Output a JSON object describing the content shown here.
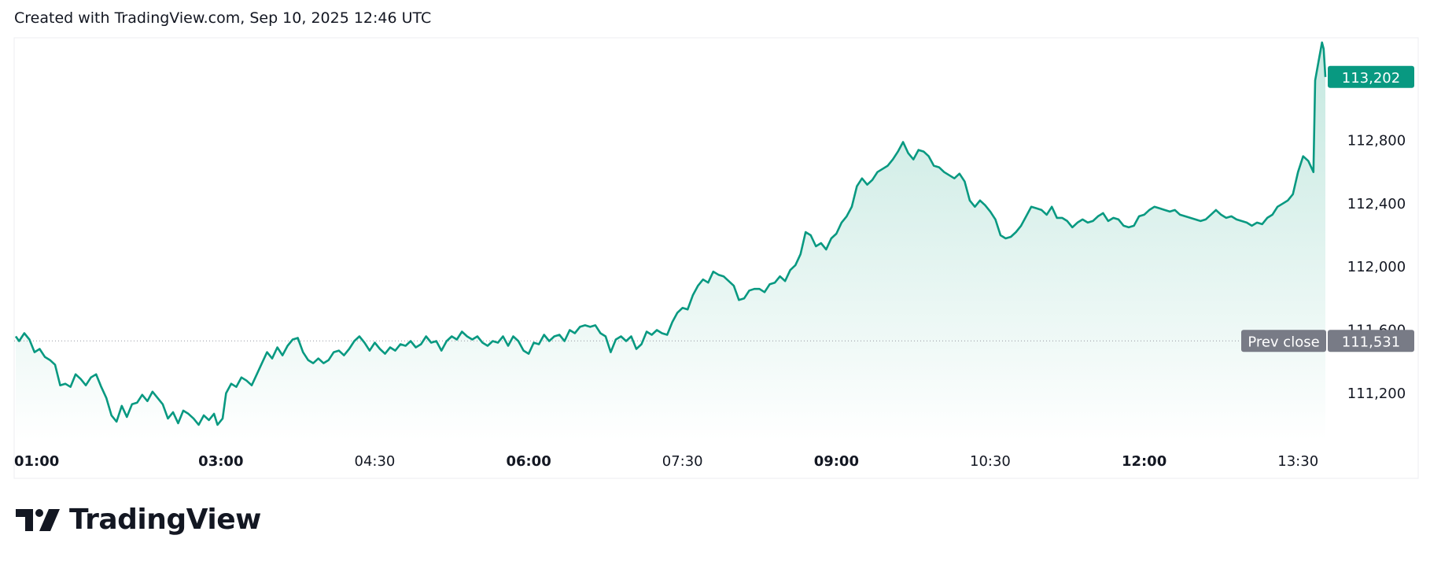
{
  "header": {
    "text": "Created with TradingView.com, Sep 10, 2025 12:46 UTC"
  },
  "logo": {
    "text": "TradingView"
  },
  "colors": {
    "line": "#089981",
    "fill_top": "#bfe6dd",
    "fill_bottom": "#ffffff",
    "prev_close_badge": "#787b86",
    "last_price_badge": "#089981",
    "axis_text": "#131722"
  },
  "chart_data": {
    "type": "area",
    "title": "",
    "xlabel": "",
    "ylabel": "",
    "x_ticks": [
      {
        "label": "01:00",
        "t": 0,
        "bold": true
      },
      {
        "label": "03:00",
        "t": 120,
        "bold": true
      },
      {
        "label": "04:30",
        "t": 210,
        "bold": false
      },
      {
        "label": "06:00",
        "t": 300,
        "bold": true
      },
      {
        "label": "07:30",
        "t": 390,
        "bold": false
      },
      {
        "label": "09:00",
        "t": 480,
        "bold": true
      },
      {
        "label": "10:30",
        "t": 570,
        "bold": false
      },
      {
        "label": "12:00",
        "t": 660,
        "bold": true
      },
      {
        "label": "13:30",
        "t": 750,
        "bold": false
      }
    ],
    "y_ticks": [
      111200,
      111600,
      112000,
      112400,
      112800
    ],
    "y_range": [
      110900,
      113450
    ],
    "x_range_minutes": [
      0,
      766
    ],
    "prev_close": {
      "label": "Prev close",
      "value": 111531,
      "value_label": "111,531"
    },
    "last_price": {
      "value": 113202,
      "value_label": "113,202"
    },
    "series": [
      {
        "values": [
          [
            0,
            111560
          ],
          [
            2,
            111530
          ],
          [
            5,
            111580
          ],
          [
            8,
            111540
          ],
          [
            11,
            111460
          ],
          [
            14,
            111480
          ],
          [
            17,
            111430
          ],
          [
            20,
            111410
          ],
          [
            23,
            111380
          ],
          [
            26,
            111250
          ],
          [
            29,
            111260
          ],
          [
            32,
            111240
          ],
          [
            35,
            111320
          ],
          [
            38,
            111290
          ],
          [
            41,
            111250
          ],
          [
            44,
            111300
          ],
          [
            47,
            111320
          ],
          [
            50,
            111240
          ],
          [
            53,
            111170
          ],
          [
            56,
            111060
          ],
          [
            59,
            111020
          ],
          [
            62,
            111120
          ],
          [
            65,
            111050
          ],
          [
            68,
            111130
          ],
          [
            71,
            111140
          ],
          [
            74,
            111190
          ],
          [
            77,
            111150
          ],
          [
            80,
            111210
          ],
          [
            83,
            111170
          ],
          [
            86,
            111130
          ],
          [
            89,
            111040
          ],
          [
            92,
            111080
          ],
          [
            95,
            111010
          ],
          [
            98,
            111090
          ],
          [
            101,
            111070
          ],
          [
            104,
            111040
          ],
          [
            107,
            111000
          ],
          [
            110,
            111060
          ],
          [
            113,
            111030
          ],
          [
            116,
            111070
          ],
          [
            118,
            111000
          ],
          [
            121,
            111040
          ],
          [
            123,
            111200
          ],
          [
            126,
            111260
          ],
          [
            129,
            111240
          ],
          [
            132,
            111300
          ],
          [
            135,
            111280
          ],
          [
            138,
            111250
          ],
          [
            141,
            111320
          ],
          [
            144,
            111390
          ],
          [
            147,
            111460
          ],
          [
            150,
            111420
          ],
          [
            153,
            111490
          ],
          [
            156,
            111440
          ],
          [
            159,
            111500
          ],
          [
            162,
            111540
          ],
          [
            165,
            111550
          ],
          [
            168,
            111460
          ],
          [
            171,
            111410
          ],
          [
            174,
            111390
          ],
          [
            177,
            111420
          ],
          [
            180,
            111390
          ],
          [
            183,
            111410
          ],
          [
            186,
            111460
          ],
          [
            189,
            111470
          ],
          [
            192,
            111440
          ],
          [
            195,
            111480
          ],
          [
            198,
            111530
          ],
          [
            201,
            111560
          ],
          [
            204,
            111520
          ],
          [
            207,
            111470
          ],
          [
            210,
            111520
          ],
          [
            213,
            111480
          ],
          [
            216,
            111450
          ],
          [
            219,
            111490
          ],
          [
            222,
            111470
          ],
          [
            225,
            111510
          ],
          [
            228,
            111500
          ],
          [
            231,
            111530
          ],
          [
            234,
            111490
          ],
          [
            237,
            111510
          ],
          [
            240,
            111560
          ],
          [
            243,
            111520
          ],
          [
            246,
            111530
          ],
          [
            249,
            111470
          ],
          [
            252,
            111530
          ],
          [
            255,
            111560
          ],
          [
            258,
            111540
          ],
          [
            261,
            111590
          ],
          [
            264,
            111560
          ],
          [
            267,
            111540
          ],
          [
            270,
            111560
          ],
          [
            273,
            111520
          ],
          [
            276,
            111500
          ],
          [
            279,
            111530
          ],
          [
            282,
            111520
          ],
          [
            285,
            111560
          ],
          [
            288,
            111500
          ],
          [
            291,
            111560
          ],
          [
            294,
            111530
          ],
          [
            297,
            111470
          ],
          [
            300,
            111450
          ],
          [
            303,
            111520
          ],
          [
            306,
            111510
          ],
          [
            309,
            111570
          ],
          [
            312,
            111530
          ],
          [
            315,
            111560
          ],
          [
            318,
            111570
          ],
          [
            321,
            111530
          ],
          [
            324,
            111600
          ],
          [
            327,
            111580
          ],
          [
            330,
            111620
          ],
          [
            333,
            111630
          ],
          [
            336,
            111620
          ],
          [
            339,
            111630
          ],
          [
            342,
            111580
          ],
          [
            345,
            111560
          ],
          [
            348,
            111460
          ],
          [
            351,
            111540
          ],
          [
            354,
            111560
          ],
          [
            357,
            111530
          ],
          [
            360,
            111560
          ],
          [
            363,
            111480
          ],
          [
            366,
            111510
          ],
          [
            369,
            111590
          ],
          [
            372,
            111570
          ],
          [
            375,
            111600
          ],
          [
            378,
            111580
          ],
          [
            381,
            111570
          ],
          [
            384,
            111650
          ],
          [
            387,
            111710
          ],
          [
            390,
            111740
          ],
          [
            393,
            111730
          ],
          [
            396,
            111820
          ],
          [
            399,
            111880
          ],
          [
            402,
            111920
          ],
          [
            405,
            111900
          ],
          [
            408,
            111970
          ],
          [
            411,
            111950
          ],
          [
            414,
            111940
          ],
          [
            417,
            111910
          ],
          [
            420,
            111880
          ],
          [
            423,
            111790
          ],
          [
            426,
            111800
          ],
          [
            429,
            111850
          ],
          [
            432,
            111860
          ],
          [
            435,
            111860
          ],
          [
            438,
            111840
          ],
          [
            441,
            111890
          ],
          [
            444,
            111900
          ],
          [
            447,
            111940
          ],
          [
            450,
            111910
          ],
          [
            453,
            111980
          ],
          [
            456,
            112010
          ],
          [
            459,
            112080
          ],
          [
            462,
            112220
          ],
          [
            465,
            112200
          ],
          [
            468,
            112130
          ],
          [
            471,
            112150
          ],
          [
            474,
            112110
          ],
          [
            477,
            112180
          ],
          [
            480,
            112210
          ],
          [
            483,
            112280
          ],
          [
            486,
            112320
          ],
          [
            489,
            112380
          ],
          [
            492,
            112510
          ],
          [
            495,
            112560
          ],
          [
            498,
            112520
          ],
          [
            501,
            112550
          ],
          [
            504,
            112600
          ],
          [
            507,
            112620
          ],
          [
            510,
            112640
          ],
          [
            513,
            112680
          ],
          [
            516,
            112730
          ],
          [
            519,
            112790
          ],
          [
            522,
            112720
          ],
          [
            525,
            112680
          ],
          [
            528,
            112740
          ],
          [
            531,
            112730
          ],
          [
            534,
            112700
          ],
          [
            537,
            112640
          ],
          [
            540,
            112630
          ],
          [
            543,
            112600
          ],
          [
            546,
            112580
          ],
          [
            549,
            112560
          ],
          [
            552,
            112590
          ],
          [
            555,
            112540
          ],
          [
            558,
            112420
          ],
          [
            561,
            112380
          ],
          [
            564,
            112420
          ],
          [
            567,
            112390
          ],
          [
            570,
            112350
          ],
          [
            573,
            112300
          ],
          [
            576,
            112200
          ],
          [
            579,
            112180
          ],
          [
            582,
            112190
          ],
          [
            585,
            112220
          ],
          [
            588,
            112260
          ],
          [
            591,
            112320
          ],
          [
            594,
            112380
          ],
          [
            597,
            112370
          ],
          [
            600,
            112360
          ],
          [
            603,
            112330
          ],
          [
            606,
            112380
          ],
          [
            609,
            112310
          ],
          [
            612,
            112310
          ],
          [
            615,
            112290
          ],
          [
            618,
            112250
          ],
          [
            621,
            112280
          ],
          [
            624,
            112300
          ],
          [
            627,
            112280
          ],
          [
            630,
            112290
          ],
          [
            633,
            112320
          ],
          [
            636,
            112340
          ],
          [
            639,
            112290
          ],
          [
            642,
            112310
          ],
          [
            645,
            112300
          ],
          [
            648,
            112260
          ],
          [
            651,
            112250
          ],
          [
            654,
            112260
          ],
          [
            657,
            112320
          ],
          [
            660,
            112330
          ],
          [
            663,
            112360
          ],
          [
            666,
            112380
          ],
          [
            669,
            112370
          ],
          [
            672,
            112360
          ],
          [
            675,
            112350
          ],
          [
            678,
            112360
          ],
          [
            681,
            112330
          ],
          [
            684,
            112320
          ],
          [
            687,
            112310
          ],
          [
            690,
            112300
          ],
          [
            693,
            112290
          ],
          [
            696,
            112300
          ],
          [
            699,
            112330
          ],
          [
            702,
            112360
          ],
          [
            705,
            112330
          ],
          [
            708,
            112310
          ],
          [
            711,
            112320
          ],
          [
            714,
            112300
          ],
          [
            717,
            112290
          ],
          [
            720,
            112280
          ],
          [
            723,
            112260
          ],
          [
            726,
            112280
          ],
          [
            729,
            112270
          ],
          [
            732,
            112310
          ],
          [
            735,
            112330
          ],
          [
            738,
            112380
          ],
          [
            741,
            112400
          ],
          [
            744,
            112420
          ],
          [
            747,
            112460
          ],
          [
            750,
            112600
          ],
          [
            753,
            112700
          ],
          [
            756,
            112670
          ],
          [
            759,
            112600
          ],
          [
            760,
            113180
          ],
          [
            762,
            113300
          ],
          [
            764,
            113420
          ],
          [
            765,
            113380
          ],
          [
            766,
            113202
          ]
        ]
      }
    ]
  }
}
